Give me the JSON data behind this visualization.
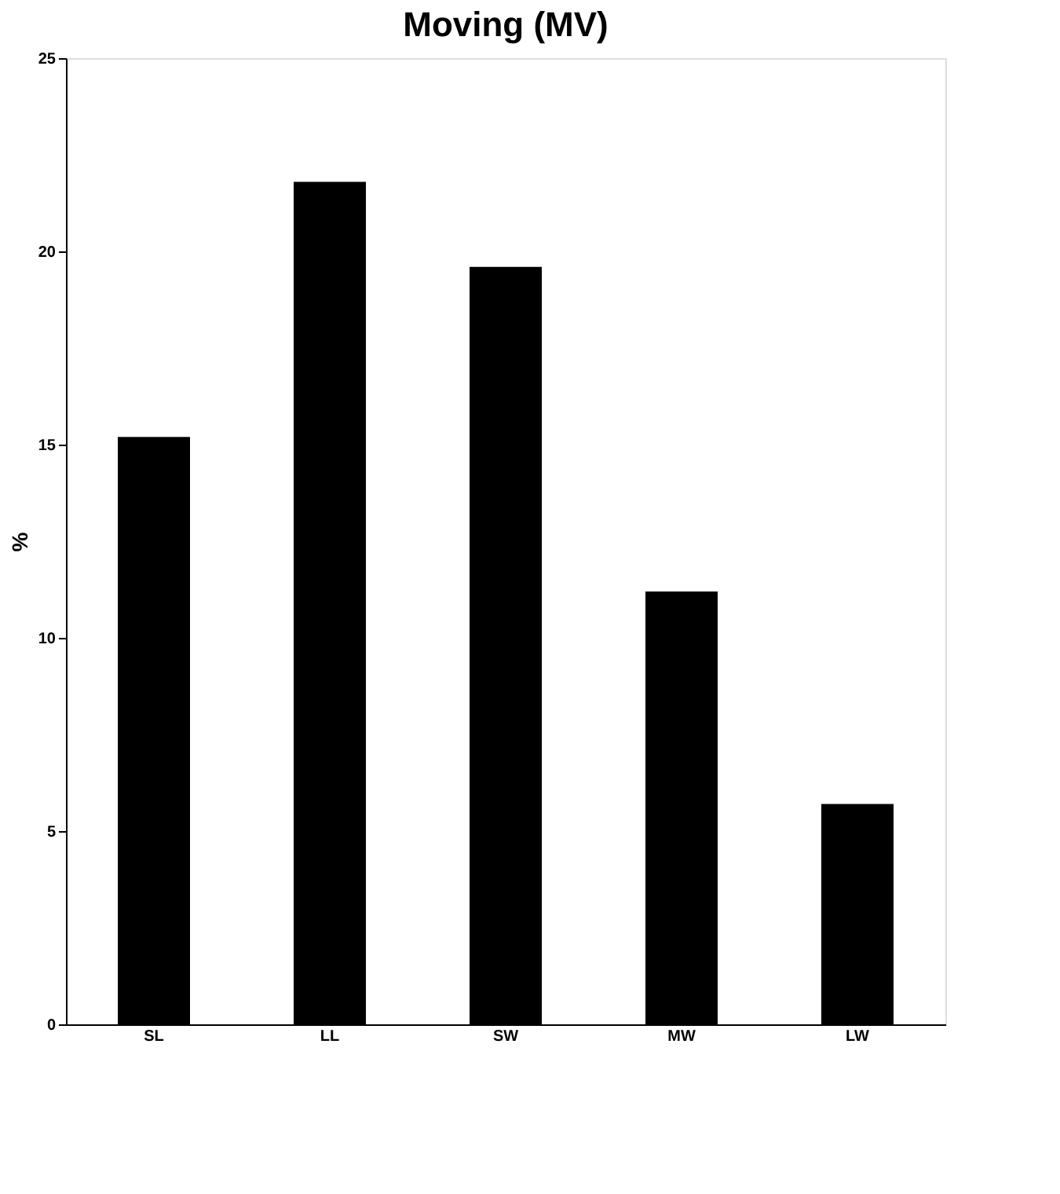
{
  "chart_data": {
    "type": "bar",
    "title": "Moving (MV)",
    "ylabel": "%",
    "categories": [
      "SL",
      "LL",
      "SW",
      "MW",
      "LW"
    ],
    "values": [
      15.2,
      21.8,
      19.6,
      11.2,
      5.7
    ],
    "color": "#000000",
    "ylim": [
      0,
      25
    ],
    "yticks": [
      0,
      5,
      10,
      15,
      20,
      25
    ],
    "grid": false
  }
}
